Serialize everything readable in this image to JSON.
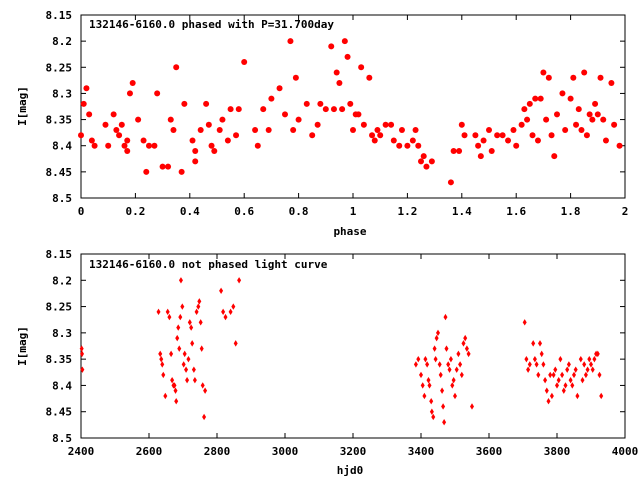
{
  "chart_data": [
    {
      "type": "scatter",
      "title": "132146-6160.0 phased with P=31.700day",
      "xlabel": "phase",
      "ylabel": "I[mag]",
      "xlim": [
        0,
        2
      ],
      "ylim": [
        8.15,
        8.5
      ],
      "y_inverted": true,
      "xticks": [
        "0",
        "0.2",
        "0.4",
        "0.6",
        "0.8",
        "1",
        "1.2",
        "1.4",
        "1.6",
        "1.8",
        "2"
      ],
      "yticks": [
        "8.15",
        "8.2",
        "8.25",
        "8.3",
        "8.35",
        "8.4",
        "8.45",
        "8.5"
      ],
      "marker": "filled-circle-large",
      "color": "#ff0000",
      "grid": false,
      "points": [
        [
          0.0,
          8.38
        ],
        [
          0.01,
          8.32
        ],
        [
          0.02,
          8.29
        ],
        [
          0.03,
          8.34
        ],
        [
          0.04,
          8.39
        ],
        [
          0.05,
          8.4
        ],
        [
          0.09,
          8.36
        ],
        [
          0.1,
          8.4
        ],
        [
          0.12,
          8.34
        ],
        [
          0.13,
          8.37
        ],
        [
          0.14,
          8.38
        ],
        [
          0.15,
          8.36
        ],
        [
          0.16,
          8.4
        ],
        [
          0.17,
          8.41
        ],
        [
          0.17,
          8.39
        ],
        [
          0.18,
          8.3
        ],
        [
          0.19,
          8.28
        ],
        [
          0.21,
          8.35
        ],
        [
          0.23,
          8.39
        ],
        [
          0.24,
          8.45
        ],
        [
          0.25,
          8.4
        ],
        [
          0.27,
          8.4
        ],
        [
          0.28,
          8.3
        ],
        [
          0.3,
          8.44
        ],
        [
          0.32,
          8.44
        ],
        [
          0.33,
          8.35
        ],
        [
          0.34,
          8.37
        ],
        [
          0.35,
          8.25
        ],
        [
          0.37,
          8.45
        ],
        [
          0.38,
          8.32
        ],
        [
          0.41,
          8.39
        ],
        [
          0.42,
          8.43
        ],
        [
          0.42,
          8.41
        ],
        [
          0.44,
          8.37
        ],
        [
          0.46,
          8.32
        ],
        [
          0.47,
          8.36
        ],
        [
          0.48,
          8.4
        ],
        [
          0.49,
          8.41
        ],
        [
          0.51,
          8.37
        ],
        [
          0.52,
          8.35
        ],
        [
          0.54,
          8.39
        ],
        [
          0.55,
          8.33
        ],
        [
          0.57,
          8.38
        ],
        [
          0.58,
          8.33
        ],
        [
          0.6,
          8.24
        ],
        [
          0.64,
          8.37
        ],
        [
          0.65,
          8.4
        ],
        [
          0.67,
          8.33
        ],
        [
          0.69,
          8.37
        ],
        [
          0.7,
          8.31
        ],
        [
          0.73,
          8.29
        ],
        [
          0.75,
          8.34
        ],
        [
          0.77,
          8.2
        ],
        [
          0.78,
          8.37
        ],
        [
          0.79,
          8.27
        ],
        [
          0.8,
          8.35
        ],
        [
          0.83,
          8.32
        ],
        [
          0.85,
          8.38
        ],
        [
          0.87,
          8.36
        ],
        [
          0.88,
          8.32
        ],
        [
          0.9,
          8.33
        ],
        [
          0.92,
          8.21
        ],
        [
          0.93,
          8.33
        ],
        [
          0.94,
          8.26
        ],
        [
          0.95,
          8.28
        ],
        [
          0.96,
          8.33
        ],
        [
          0.97,
          8.2
        ],
        [
          0.98,
          8.23
        ],
        [
          0.99,
          8.32
        ],
        [
          1.0,
          8.37
        ],
        [
          1.01,
          8.34
        ],
        [
          1.02,
          8.34
        ],
        [
          1.03,
          8.25
        ],
        [
          1.04,
          8.36
        ],
        [
          1.06,
          8.27
        ],
        [
          1.07,
          8.38
        ],
        [
          1.08,
          8.39
        ],
        [
          1.09,
          8.37
        ],
        [
          1.1,
          8.38
        ],
        [
          1.12,
          8.36
        ],
        [
          1.14,
          8.36
        ],
        [
          1.15,
          8.39
        ],
        [
          1.17,
          8.4
        ],
        [
          1.18,
          8.37
        ],
        [
          1.2,
          8.4
        ],
        [
          1.22,
          8.39
        ],
        [
          1.23,
          8.37
        ],
        [
          1.24,
          8.4
        ],
        [
          1.25,
          8.43
        ],
        [
          1.26,
          8.42
        ],
        [
          1.27,
          8.44
        ],
        [
          1.29,
          8.43
        ],
        [
          1.37,
          8.41
        ],
        [
          1.39,
          8.41
        ],
        [
          1.4,
          8.36
        ],
        [
          1.41,
          8.38
        ],
        [
          1.36,
          8.47
        ],
        [
          1.45,
          8.38
        ],
        [
          1.46,
          8.4
        ],
        [
          1.47,
          8.42
        ],
        [
          1.48,
          8.39
        ],
        [
          1.5,
          8.37
        ],
        [
          1.51,
          8.41
        ],
        [
          1.53,
          8.38
        ],
        [
          1.55,
          8.38
        ],
        [
          1.57,
          8.39
        ],
        [
          1.59,
          8.37
        ],
        [
          1.6,
          8.4
        ],
        [
          1.62,
          8.36
        ],
        [
          1.63,
          8.33
        ],
        [
          1.64,
          8.35
        ],
        [
          1.65,
          8.32
        ],
        [
          1.66,
          8.38
        ],
        [
          1.67,
          8.31
        ],
        [
          1.68,
          8.39
        ],
        [
          1.69,
          8.31
        ],
        [
          1.7,
          8.26
        ],
        [
          1.71,
          8.35
        ],
        [
          1.72,
          8.27
        ],
        [
          1.73,
          8.38
        ],
        [
          1.74,
          8.42
        ],
        [
          1.75,
          8.34
        ],
        [
          1.77,
          8.3
        ],
        [
          1.78,
          8.37
        ],
        [
          1.8,
          8.31
        ],
        [
          1.81,
          8.27
        ],
        [
          1.82,
          8.36
        ],
        [
          1.83,
          8.33
        ],
        [
          1.84,
          8.37
        ],
        [
          1.85,
          8.26
        ],
        [
          1.86,
          8.38
        ],
        [
          1.87,
          8.34
        ],
        [
          1.88,
          8.35
        ],
        [
          1.89,
          8.32
        ],
        [
          1.9,
          8.34
        ],
        [
          1.91,
          8.27
        ],
        [
          1.92,
          8.35
        ],
        [
          1.93,
          8.39
        ],
        [
          1.95,
          8.28
        ],
        [
          1.96,
          8.36
        ],
        [
          1.98,
          8.4
        ]
      ]
    },
    {
      "type": "scatter",
      "title": "132146-6160.0 not phased light curve",
      "xlabel": "hjd0",
      "ylabel": "I[mag]",
      "xlim": [
        2400,
        4000
      ],
      "ylim": [
        8.15,
        8.5
      ],
      "y_inverted": true,
      "xticks": [
        "2400",
        "2600",
        "2800",
        "3000",
        "3200",
        "3400",
        "3600",
        "3800",
        "4000"
      ],
      "yticks": [
        "8.15",
        "8.2",
        "8.25",
        "8.3",
        "8.35",
        "8.4",
        "8.45",
        "8.5"
      ],
      "marker": "small-diamond",
      "color": "#ff0000",
      "grid": false,
      "points": [
        [
          2402,
          8.33
        ],
        [
          2403,
          8.34
        ],
        [
          2404,
          8.37
        ],
        [
          2628,
          8.26
        ],
        [
          2633,
          8.34
        ],
        [
          2636,
          8.35
        ],
        [
          2639,
          8.36
        ],
        [
          2642,
          8.38
        ],
        [
          2648,
          8.42
        ],
        [
          2655,
          8.26
        ],
        [
          2660,
          8.27
        ],
        [
          2665,
          8.34
        ],
        [
          2668,
          8.39
        ],
        [
          2672,
          8.4
        ],
        [
          2675,
          8.4
        ],
        [
          2678,
          8.41
        ],
        [
          2680,
          8.43
        ],
        [
          2683,
          8.31
        ],
        [
          2686,
          8.29
        ],
        [
          2689,
          8.33
        ],
        [
          2692,
          8.27
        ],
        [
          2694,
          8.2
        ],
        [
          2698,
          8.25
        ],
        [
          2702,
          8.36
        ],
        [
          2705,
          8.34
        ],
        [
          2709,
          8.37
        ],
        [
          2712,
          8.39
        ],
        [
          2716,
          8.35
        ],
        [
          2720,
          8.28
        ],
        [
          2724,
          8.29
        ],
        [
          2727,
          8.32
        ],
        [
          2732,
          8.37
        ],
        [
          2735,
          8.39
        ],
        [
          2740,
          8.26
        ],
        [
          2745,
          8.25
        ],
        [
          2748,
          8.24
        ],
        [
          2752,
          8.28
        ],
        [
          2755,
          8.33
        ],
        [
          2758,
          8.4
        ],
        [
          2762,
          8.46
        ],
        [
          2765,
          8.41
        ],
        [
          2812,
          8.22
        ],
        [
          2818,
          8.26
        ],
        [
          2825,
          8.27
        ],
        [
          2840,
          8.26
        ],
        [
          2848,
          8.25
        ],
        [
          2855,
          8.32
        ],
        [
          2865,
          8.2
        ],
        [
          3385,
          8.36
        ],
        [
          3392,
          8.35
        ],
        [
          3400,
          8.38
        ],
        [
          3405,
          8.4
        ],
        [
          3410,
          8.42
        ],
        [
          3413,
          8.35
        ],
        [
          3418,
          8.36
        ],
        [
          3422,
          8.39
        ],
        [
          3425,
          8.4
        ],
        [
          3430,
          8.43
        ],
        [
          3432,
          8.45
        ],
        [
          3436,
          8.46
        ],
        [
          3440,
          8.33
        ],
        [
          3443,
          8.35
        ],
        [
          3446,
          8.31
        ],
        [
          3450,
          8.3
        ],
        [
          3455,
          8.36
        ],
        [
          3458,
          8.38
        ],
        [
          3462,
          8.41
        ],
        [
          3465,
          8.44
        ],
        [
          3468,
          8.47
        ],
        [
          3472,
          8.27
        ],
        [
          3475,
          8.33
        ],
        [
          3480,
          8.36
        ],
        [
          3484,
          8.37
        ],
        [
          3488,
          8.35
        ],
        [
          3492,
          8.4
        ],
        [
          3496,
          8.39
        ],
        [
          3500,
          8.42
        ],
        [
          3505,
          8.37
        ],
        [
          3510,
          8.34
        ],
        [
          3515,
          8.36
        ],
        [
          3520,
          8.38
        ],
        [
          3525,
          8.32
        ],
        [
          3530,
          8.31
        ],
        [
          3535,
          8.33
        ],
        [
          3540,
          8.34
        ],
        [
          3550,
          8.44
        ],
        [
          3705,
          8.28
        ],
        [
          3710,
          8.35
        ],
        [
          3715,
          8.37
        ],
        [
          3720,
          8.36
        ],
        [
          3730,
          8.32
        ],
        [
          3735,
          8.35
        ],
        [
          3740,
          8.36
        ],
        [
          3745,
          8.38
        ],
        [
          3750,
          8.32
        ],
        [
          3755,
          8.34
        ],
        [
          3760,
          8.36
        ],
        [
          3765,
          8.39
        ],
        [
          3770,
          8.41
        ],
        [
          3775,
          8.43
        ],
        [
          3780,
          8.38
        ],
        [
          3785,
          8.42
        ],
        [
          3790,
          8.38
        ],
        [
          3795,
          8.37
        ],
        [
          3800,
          8.4
        ],
        [
          3805,
          8.39
        ],
        [
          3810,
          8.35
        ],
        [
          3815,
          8.38
        ],
        [
          3820,
          8.41
        ],
        [
          3825,
          8.4
        ],
        [
          3830,
          8.37
        ],
        [
          3835,
          8.36
        ],
        [
          3840,
          8.39
        ],
        [
          3845,
          8.4
        ],
        [
          3850,
          8.38
        ],
        [
          3855,
          8.37
        ],
        [
          3860,
          8.42
        ],
        [
          3870,
          8.35
        ],
        [
          3875,
          8.39
        ],
        [
          3880,
          8.36
        ],
        [
          3885,
          8.38
        ],
        [
          3890,
          8.37
        ],
        [
          3895,
          8.35
        ],
        [
          3900,
          8.36
        ],
        [
          3905,
          8.37
        ],
        [
          3910,
          8.35
        ],
        [
          3915,
          8.34
        ],
        [
          3920,
          8.34
        ],
        [
          3925,
          8.38
        ],
        [
          3930,
          8.42
        ]
      ]
    }
  ]
}
